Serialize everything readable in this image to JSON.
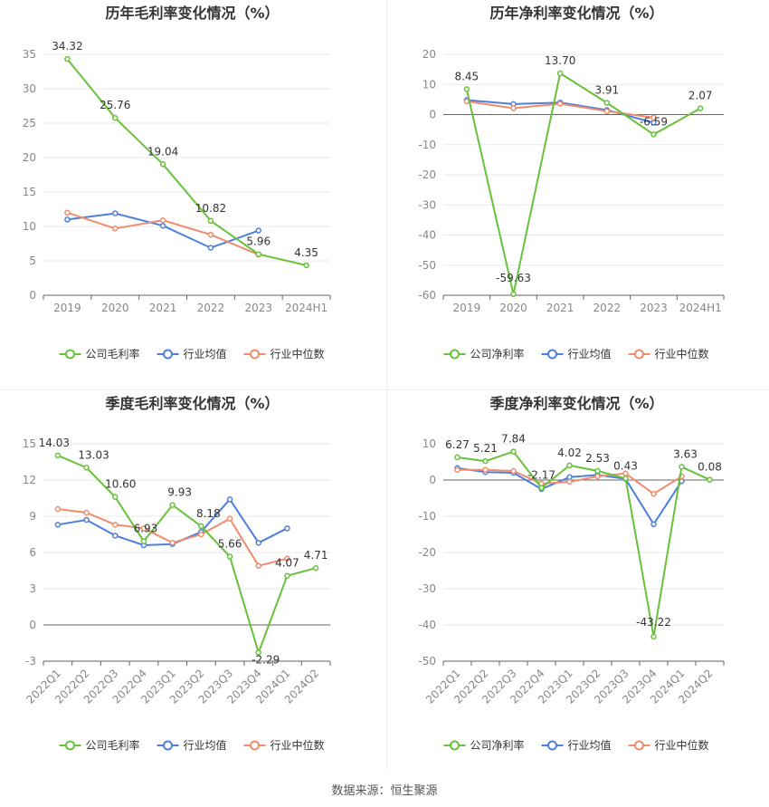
{
  "footer": "数据来源：恒生聚源",
  "colors": {
    "company": "#67c23a",
    "avg": "#4e7fdb",
    "median": "#f08c6c",
    "axis": "#333333",
    "grid": "#e8e8e8",
    "tick": "#888888"
  },
  "chart_data": [
    {
      "type": "line",
      "title": "历年毛利率变化情况（%）",
      "categories": [
        "2019",
        "2020",
        "2021",
        "2022",
        "2023",
        "2024H1"
      ],
      "ylim": [
        0,
        35
      ],
      "yticks": [
        0,
        5,
        10,
        15,
        20,
        25,
        30,
        35
      ],
      "tick_rotate": false,
      "legend": "bottom",
      "series": [
        {
          "name": "公司毛利率",
          "key": "company",
          "values": [
            34.32,
            25.76,
            19.04,
            10.82,
            5.96,
            4.35
          ],
          "labels": [
            "34.32",
            "25.76",
            "19.04",
            "10.82",
            "5.96",
            "4.35"
          ]
        },
        {
          "name": "行业均值",
          "key": "avg",
          "values": [
            11.0,
            11.9,
            10.1,
            6.9,
            9.4,
            null
          ]
        },
        {
          "name": "行业中位数",
          "key": "median",
          "values": [
            12.0,
            9.7,
            10.9,
            8.8,
            5.9,
            null
          ]
        }
      ]
    },
    {
      "type": "line",
      "title": "历年净利率变化情况（%）",
      "categories": [
        "2019",
        "2020",
        "2021",
        "2022",
        "2023",
        "2024H1"
      ],
      "ylim": [
        -60,
        20
      ],
      "yticks": [
        -60,
        -50,
        -40,
        -30,
        -20,
        -10,
        0,
        10,
        20
      ],
      "tick_rotate": false,
      "legend": "bottom",
      "series": [
        {
          "name": "公司净利率",
          "key": "company",
          "values": [
            8.45,
            -59.63,
            13.7,
            3.91,
            -6.59,
            2.07
          ],
          "labels": [
            "8.45",
            "-59.63",
            "13.70",
            "3.91",
            "-6.59",
            "2.07"
          ]
        },
        {
          "name": "行业均值",
          "key": "avg",
          "values": [
            4.8,
            3.5,
            4.0,
            1.5,
            -2.7,
            null
          ]
        },
        {
          "name": "行业中位数",
          "key": "median",
          "values": [
            4.4,
            2.1,
            3.6,
            1.1,
            -1.0,
            null
          ]
        }
      ]
    },
    {
      "type": "line",
      "title": "季度毛利率变化情况（%）",
      "categories": [
        "2022Q1",
        "2022Q2",
        "2022Q3",
        "2022Q4",
        "2023Q1",
        "2023Q2",
        "2023Q3",
        "2023Q4",
        "2024Q1",
        "2024Q2"
      ],
      "ylim": [
        -3,
        15
      ],
      "yticks": [
        -3,
        0,
        3,
        6,
        9,
        12,
        15
      ],
      "tick_rotate": true,
      "legend": "bottom",
      "series": [
        {
          "name": "公司毛利率",
          "key": "company",
          "values": [
            14.03,
            13.03,
            10.6,
            6.93,
            9.93,
            8.18,
            5.66,
            -2.29,
            4.07,
            4.71
          ],
          "labels": [
            "14.03",
            "13.03",
            "10.60",
            "6.93",
            "9.93",
            "8.18",
            "5.66",
            "-2.29",
            "4.07",
            "4.71"
          ]
        },
        {
          "name": "行业均值",
          "key": "avg",
          "values": [
            8.3,
            8.7,
            7.4,
            6.6,
            6.7,
            7.7,
            10.4,
            6.8,
            8.0,
            null
          ]
        },
        {
          "name": "行业中位数",
          "key": "median",
          "values": [
            9.6,
            9.3,
            8.3,
            8.0,
            6.8,
            7.5,
            8.8,
            4.9,
            5.5,
            null
          ]
        }
      ]
    },
    {
      "type": "line",
      "title": "季度净利率变化情况（%）",
      "categories": [
        "2022Q1",
        "2022Q2",
        "2022Q3",
        "2022Q4",
        "2023Q1",
        "2023Q2",
        "2023Q3",
        "2023Q4",
        "2024Q1",
        "2024Q2"
      ],
      "ylim": [
        -50,
        10
      ],
      "yticks": [
        -50,
        -40,
        -30,
        -20,
        -10,
        0,
        10
      ],
      "tick_rotate": true,
      "legend": "bottom",
      "series": [
        {
          "name": "公司净利率",
          "key": "company",
          "values": [
            6.27,
            5.21,
            7.84,
            -2.17,
            4.02,
            2.53,
            0.43,
            -43.22,
            3.63,
            0.08
          ],
          "labels": [
            "6.27",
            "5.21",
            "7.84",
            "-2.17",
            "4.02",
            "2.53",
            "0.43",
            "-43.22",
            "3.63",
            "0.08"
          ]
        },
        {
          "name": "行业均值",
          "key": "avg",
          "values": [
            3.3,
            2.2,
            2.0,
            -2.5,
            0.8,
            1.4,
            0.3,
            -12.2,
            -0.3,
            null
          ]
        },
        {
          "name": "行业中位数",
          "key": "median",
          "values": [
            2.8,
            2.8,
            2.5,
            -1.0,
            -0.5,
            1.0,
            1.8,
            -3.8,
            1.0,
            null
          ]
        }
      ]
    }
  ]
}
